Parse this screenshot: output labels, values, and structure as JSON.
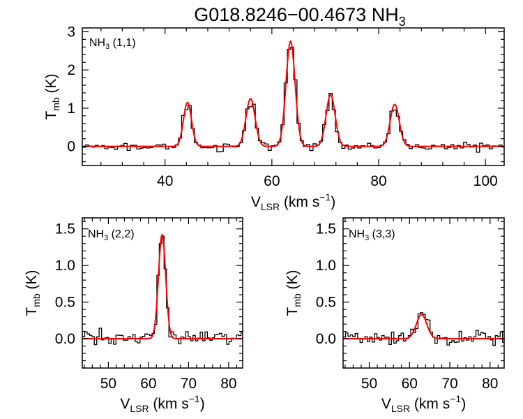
{
  "figure_title": {
    "main": "G018.8246−00.4673 NH",
    "sub": "3"
  },
  "colors": {
    "observed": "#000000",
    "fit": "#ff0000",
    "axes": "#000000"
  },
  "chart_data": [
    {
      "id": "top",
      "type": "line",
      "label": {
        "main": "NH",
        "sub": "3",
        "rest": " (1,1)"
      },
      "xlabel": {
        "main": "V",
        "sub": "LSR",
        "rest": " (km s",
        "sup": "−1",
        "end": ")"
      },
      "ylabel": {
        "main": "T",
        "sub": "mb",
        "rest": " (K)"
      },
      "xlim": [
        24.5,
        103.5
      ],
      "ylim": [
        -0.5,
        3.1
      ],
      "xticks": [
        40,
        60,
        80,
        100
      ],
      "yticks": [
        0,
        1,
        2,
        3
      ],
      "channel_width": 0.6,
      "fit_components": [
        {
          "center": 44.2,
          "amplitude": 1.15,
          "sigma": 0.75
        },
        {
          "center": 56.0,
          "amplitude": 1.25,
          "sigma": 0.85
        },
        {
          "center": 63.5,
          "amplitude": 2.75,
          "sigma": 0.85
        },
        {
          "center": 71.0,
          "amplitude": 1.35,
          "sigma": 0.85
        },
        {
          "center": 83.0,
          "amplitude": 1.1,
          "sigma": 0.85
        }
      ],
      "noise_rms": 0.05
    },
    {
      "id": "bottom-left",
      "type": "line",
      "label": {
        "main": "NH",
        "sub": "3",
        "rest": " (2,2)"
      },
      "xlabel": {
        "main": "V",
        "sub": "LSR",
        "rest": " (km s",
        "sup": "−1",
        "end": ")"
      },
      "ylabel": {
        "main": "T",
        "sub": "mb",
        "rest": " (K)"
      },
      "xlim": [
        43.5,
        83.5
      ],
      "ylim": [
        -0.4,
        1.65
      ],
      "xticks": [
        50,
        60,
        70,
        80
      ],
      "yticks": [
        0.0,
        0.5,
        1.0,
        1.5
      ],
      "channel_width": 0.6,
      "fit_components": [
        {
          "center": 63.4,
          "amplitude": 1.42,
          "sigma": 0.9
        }
      ],
      "noise_rms": 0.05
    },
    {
      "id": "bottom-right",
      "type": "line",
      "label": {
        "main": "NH",
        "sub": "3",
        "rest": " (3,3)"
      },
      "xlabel": {
        "main": "V",
        "sub": "LSR",
        "rest": " (km s",
        "sup": "−1",
        "end": ")"
      },
      "ylabel": {
        "main": "T",
        "sub": "mb",
        "rest": " (K)"
      },
      "xlim": [
        43.5,
        83.5
      ],
      "ylim": [
        -0.4,
        1.65
      ],
      "xticks": [
        50,
        60,
        70,
        80
      ],
      "yticks": [
        0.0,
        0.5,
        1.0,
        1.5
      ],
      "channel_width": 0.6,
      "fit_components": [
        {
          "center": 63.0,
          "amplitude": 0.33,
          "sigma": 1.3
        }
      ],
      "noise_rms": 0.05
    }
  ]
}
